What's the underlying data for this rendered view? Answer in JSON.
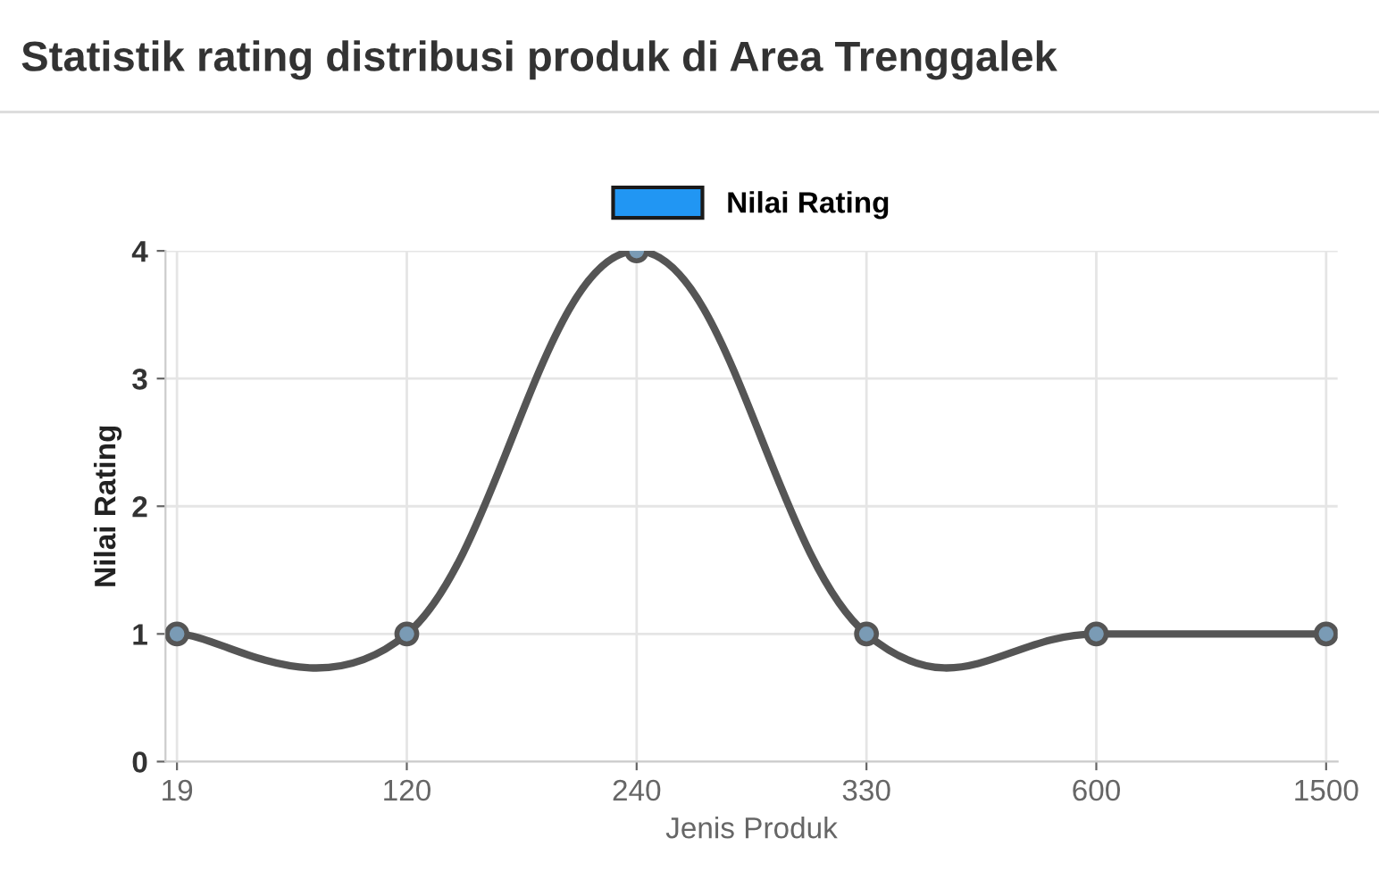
{
  "chart_data": {
    "type": "line",
    "title": "Statistik rating distribusi produk di Area Trenggalek",
    "xlabel": "Jenis Produk",
    "ylabel": "Nilai Rating",
    "categories": [
      "19",
      "120",
      "240",
      "330",
      "600",
      "1500"
    ],
    "series": [
      {
        "name": "Nilai Rating",
        "color": "#555555",
        "values": [
          1,
          1,
          4,
          1,
          1,
          1
        ]
      }
    ],
    "ylim": [
      0,
      4
    ],
    "yticks": [
      0,
      1,
      2,
      3,
      4
    ],
    "grid": true,
    "legend": "top",
    "marker": "circle",
    "line_style": "solid"
  }
}
